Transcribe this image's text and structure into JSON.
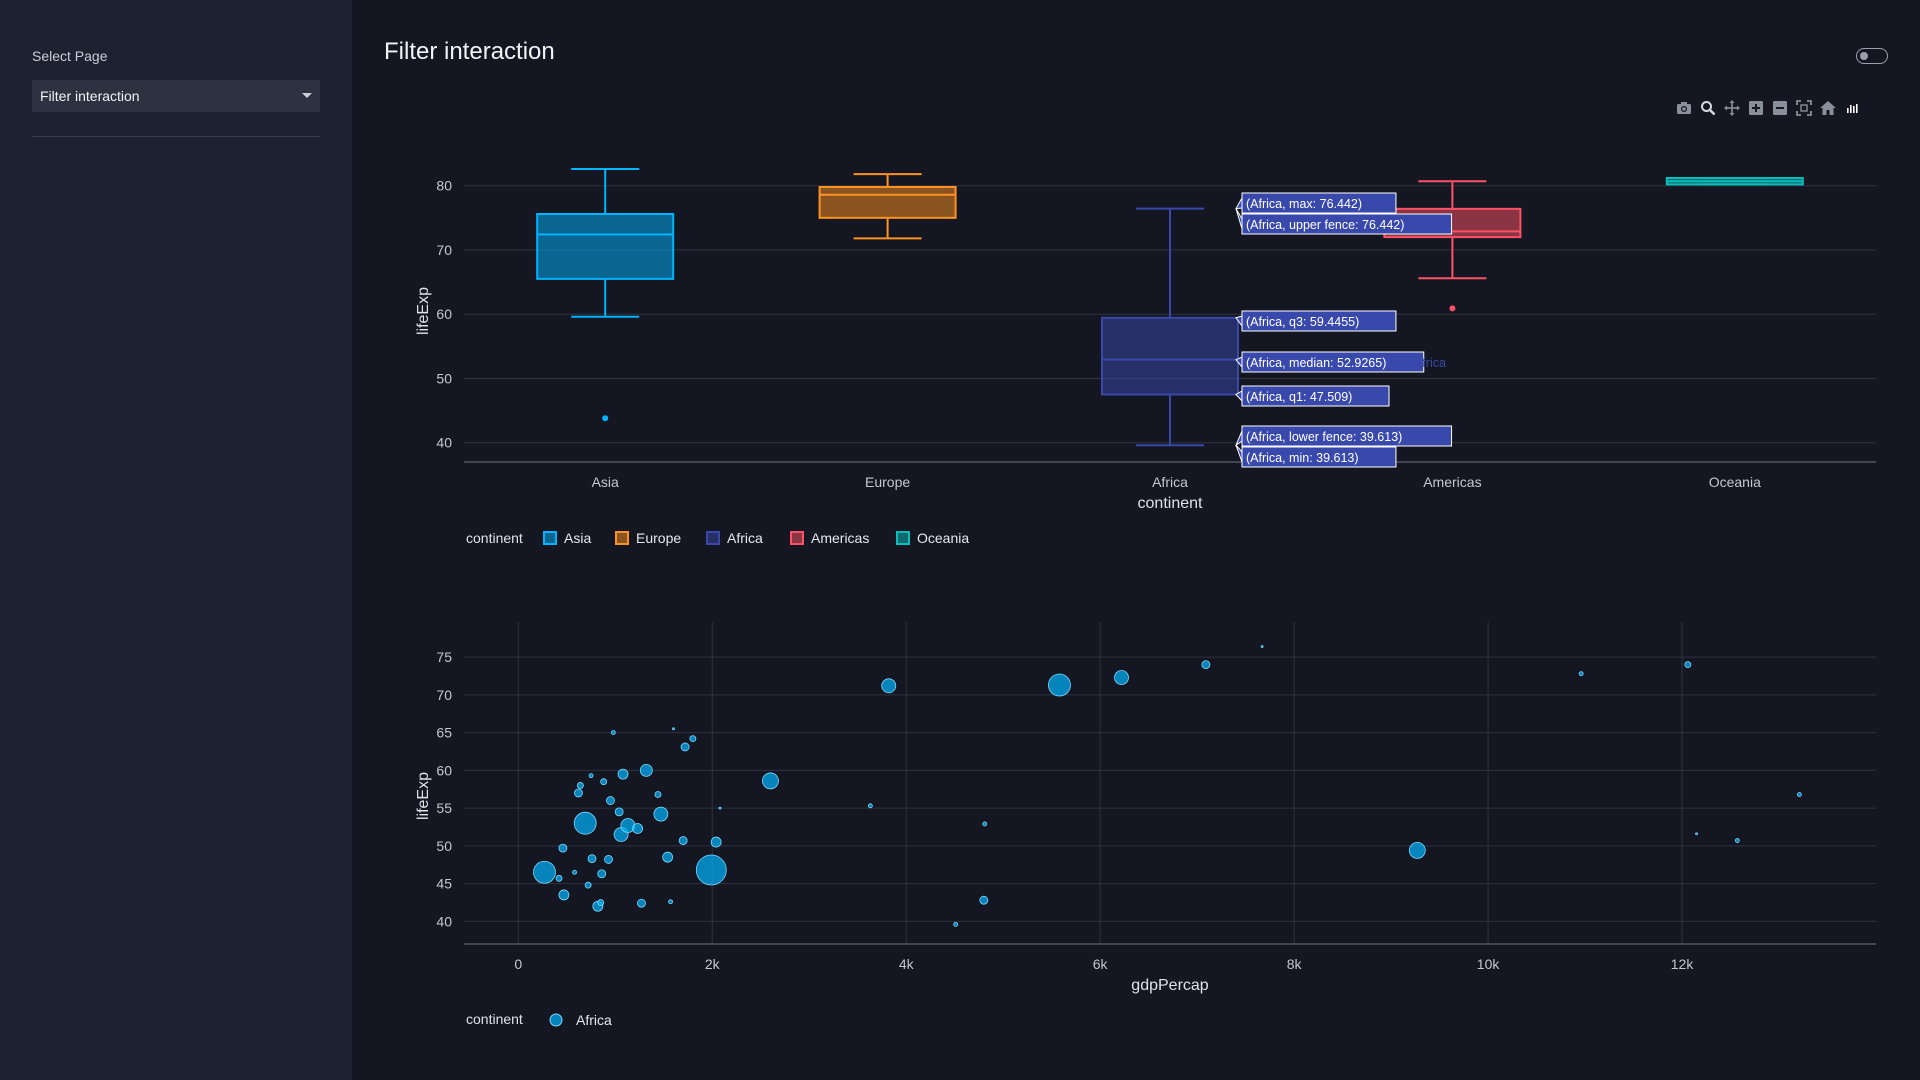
{
  "sidebar": {
    "select_label": "Select Page",
    "selected_page": "Filter interaction"
  },
  "page": {
    "title": "Filter interaction"
  },
  "modebar": {
    "icons": [
      "camera-icon",
      "zoom-icon",
      "pan-icon",
      "zoom-in-icon",
      "zoom-out-icon",
      "autoscale-icon",
      "reset-axes-icon",
      "plotly-logo-icon"
    ]
  },
  "colors": {
    "Asia": "#00b4ff",
    "Europe": "#ff9222",
    "Africa": "#3949ab",
    "Americas": "#ff5267",
    "Oceania": "#08bdba"
  },
  "box_chart": {
    "type": "box",
    "xlabel": "continent",
    "ylabel": "lifeExp",
    "yticks": [
      "40",
      "50",
      "60",
      "70",
      "80"
    ],
    "ylim": [
      37,
      84
    ],
    "legend_title": "continent",
    "legend": [
      "Asia",
      "Europe",
      "Africa",
      "Americas",
      "Oceania"
    ],
    "boxes": [
      {
        "name": "Asia",
        "min": 59.6,
        "q1": 65.5,
        "median": 72.4,
        "q3": 75.6,
        "max": 82.6,
        "outliers": [
          43.8
        ]
      },
      {
        "name": "Europe",
        "min": 71.8,
        "q1": 75.0,
        "median": 78.6,
        "q3": 79.8,
        "max": 81.8,
        "outliers": []
      },
      {
        "name": "Africa",
        "min": 39.613,
        "q1": 47.509,
        "median": 52.9265,
        "q3": 59.4455,
        "max": 76.442,
        "outliers": []
      },
      {
        "name": "Americas",
        "min": 65.6,
        "q1": 72.0,
        "median": 72.9,
        "q3": 76.4,
        "max": 80.7,
        "outliers": [
          60.9
        ]
      },
      {
        "name": "Oceania",
        "min": 80.2,
        "q1": 80.2,
        "median": 80.7,
        "q3": 81.2,
        "max": 81.2,
        "outliers": []
      }
    ],
    "hover": {
      "labels": [
        "(Africa, max: 76.442)",
        "(Africa, upper fence: 76.442)",
        "(Africa, q3: 59.4455)",
        "(Africa, median: 52.9265)",
        "(Africa, q1: 47.509)",
        "(Africa, lower fence: 39.613)",
        "(Africa, min: 39.613)"
      ],
      "values": [
        76.442,
        76.442,
        59.4455,
        52.9265,
        47.509,
        39.613,
        39.613
      ],
      "trace_label": "Africa"
    }
  },
  "scatter_chart": {
    "type": "scatter",
    "xlabel": "gdpPercap",
    "ylabel": "lifeExp",
    "xticks": [
      "0",
      "2k",
      "4k",
      "6k",
      "8k",
      "10k",
      "12k"
    ],
    "yticks": [
      "40",
      "45",
      "50",
      "55",
      "60",
      "65",
      "70",
      "75"
    ],
    "xlim": [
      -560,
      14000
    ],
    "ylim": [
      37,
      77
    ],
    "legend_title": "continent",
    "legend": [
      "Africa"
    ],
    "points": [
      [
        270,
        46.5,
        11
      ],
      [
        420,
        45.7,
        3
      ],
      [
        460,
        49.7,
        4
      ],
      [
        470,
        43.5,
        5
      ],
      [
        580,
        46.5,
        2
      ],
      [
        620,
        57.0,
        4
      ],
      [
        640,
        58.0,
        3
      ],
      [
        690,
        53.0,
        11
      ],
      [
        720,
        44.8,
        3
      ],
      [
        750,
        59.3,
        2
      ],
      [
        760,
        48.3,
        4
      ],
      [
        820,
        42.0,
        5
      ],
      [
        850,
        42.5,
        3
      ],
      [
        860,
        46.3,
        4
      ],
      [
        880,
        58.5,
        3
      ],
      [
        930,
        48.2,
        4
      ],
      [
        950,
        56.0,
        4
      ],
      [
        980,
        65.0,
        2
      ],
      [
        1040,
        54.5,
        4
      ],
      [
        1060,
        51.5,
        7
      ],
      [
        1080,
        59.5,
        5
      ],
      [
        1130,
        52.7,
        7
      ],
      [
        1230,
        52.3,
        5
      ],
      [
        1270,
        42.4,
        4
      ],
      [
        1320,
        60.0,
        6
      ],
      [
        1440,
        56.8,
        3
      ],
      [
        1470,
        54.2,
        7
      ],
      [
        1540,
        48.5,
        5
      ],
      [
        1570,
        42.6,
        2
      ],
      [
        1600,
        65.5,
        1
      ],
      [
        1700,
        50.7,
        4
      ],
      [
        1720,
        63.1,
        4
      ],
      [
        1800,
        64.2,
        3
      ],
      [
        1990,
        46.8,
        15
      ],
      [
        2040,
        50.5,
        5
      ],
      [
        2080,
        55.0,
        1
      ],
      [
        2600,
        58.6,
        8
      ],
      [
        3630,
        55.3,
        2
      ],
      [
        3820,
        71.2,
        7
      ],
      [
        4510,
        39.6,
        2
      ],
      [
        4800,
        42.8,
        4
      ],
      [
        4810,
        52.9,
        2
      ],
      [
        5580,
        71.3,
        11
      ],
      [
        6220,
        72.3,
        7
      ],
      [
        7090,
        74.0,
        4
      ],
      [
        7670,
        76.4,
        1
      ],
      [
        9270,
        49.4,
        8
      ],
      [
        10960,
        72.8,
        2
      ],
      [
        12060,
        74.0,
        3
      ],
      [
        12150,
        51.6,
        1
      ],
      [
        12570,
        50.7,
        2
      ],
      [
        13210,
        56.8,
        2
      ]
    ]
  }
}
